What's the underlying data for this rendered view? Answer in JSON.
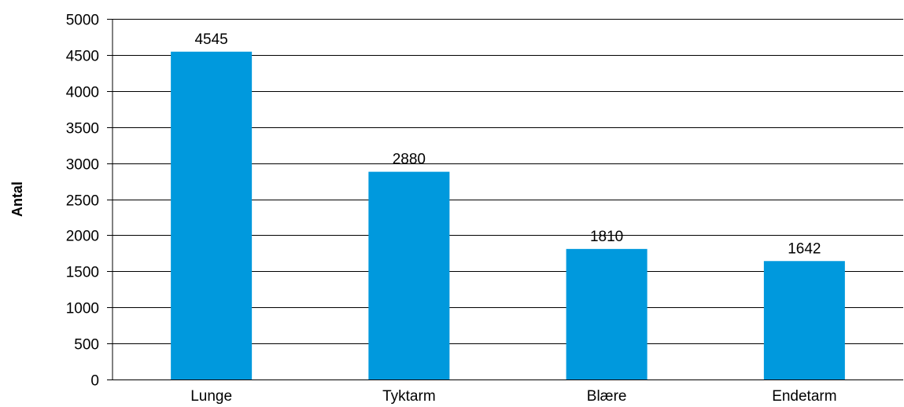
{
  "chart_data": {
    "type": "bar",
    "categories": [
      "Lunge",
      "Tyktarm",
      "Blære",
      "Endetarm"
    ],
    "values": [
      4545,
      2880,
      1810,
      1642
    ],
    "data_labels": [
      "4545",
      "2880",
      "1810",
      "1642"
    ],
    "title": "",
    "xlabel": "",
    "ylabel": "Antal",
    "ylim": [
      0,
      5000
    ],
    "yticks": [
      0,
      500,
      1000,
      1500,
      2000,
      2500,
      3000,
      3500,
      4000,
      4500,
      5000
    ],
    "grid": true,
    "legend": "none",
    "bar_color": "#0099dd",
    "grid_color": "#000000"
  }
}
